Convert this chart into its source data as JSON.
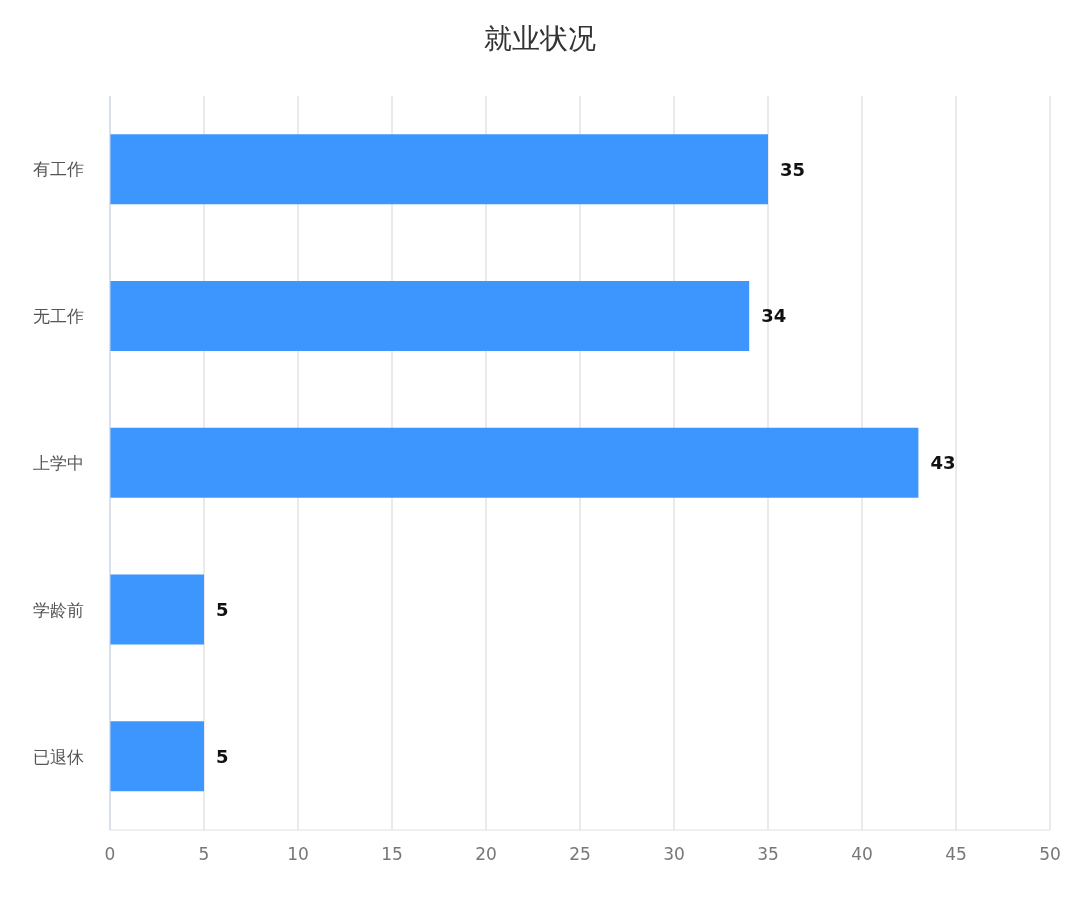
{
  "chart_data": {
    "type": "bar",
    "orientation": "horizontal",
    "title": "就业状况",
    "categories": [
      "有工作",
      "无工作",
      "上学中",
      "学龄前",
      "已退休"
    ],
    "values": [
      35,
      34,
      43,
      5,
      5
    ],
    "color": "#3d96fd",
    "xlim": [
      0,
      50
    ],
    "xticks": [
      0,
      5,
      10,
      15,
      20,
      25,
      30,
      35,
      40,
      45,
      50
    ],
    "grid": "x",
    "data_labels": true
  }
}
